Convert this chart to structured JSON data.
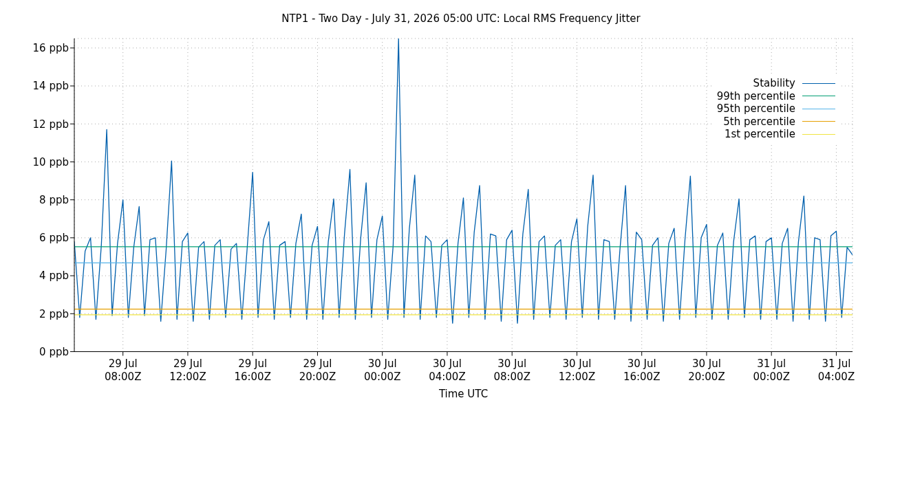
{
  "chart_data": {
    "type": "line",
    "title": "NTP1 - Two Day - July 31, 2026 05:00 UTC: Local RMS Frequency Jitter",
    "xlabel": "Time UTC",
    "xlim": [
      "2026-07-29T05:00",
      "2026-07-31T05:00"
    ],
    "xticks": [
      {
        "value": "2026-07-29T08:00",
        "label": "29 Jul\n08:00Z"
      },
      {
        "value": "2026-07-29T12:00",
        "label": "29 Jul\n12:00Z"
      },
      {
        "value": "2026-07-29T16:00",
        "label": "29 Jul\n16:00Z"
      },
      {
        "value": "2026-07-29T20:00",
        "label": "29 Jul\n20:00Z"
      },
      {
        "value": "2026-07-30T00:00",
        "label": "30 Jul\n00:00Z"
      },
      {
        "value": "2026-07-30T04:00",
        "label": "30 Jul\n04:00Z"
      },
      {
        "value": "2026-07-30T08:00",
        "label": "30 Jul\n08:00Z"
      },
      {
        "value": "2026-07-30T12:00",
        "label": "30 Jul\n12:00Z"
      },
      {
        "value": "2026-07-30T16:00",
        "label": "30 Jul\n16:00Z"
      },
      {
        "value": "2026-07-30T20:00",
        "label": "30 Jul\n20:00Z"
      },
      {
        "value": "2026-07-31T00:00",
        "label": "31 Jul\n00:00Z"
      },
      {
        "value": "2026-07-31T04:00",
        "label": "31 Jul\n04:00Z"
      }
    ],
    "ylim": [
      0,
      16.5
    ],
    "yticks": [
      {
        "value": 0,
        "label": "0 ppb"
      },
      {
        "value": 2,
        "label": "2 ppb"
      },
      {
        "value": 4,
        "label": "4 ppb"
      },
      {
        "value": 6,
        "label": "6 ppb"
      },
      {
        "value": 8,
        "label": "8 ppb"
      },
      {
        "value": 10,
        "label": "10 ppb"
      },
      {
        "value": 12,
        "label": "12 ppb"
      },
      {
        "value": 14,
        "label": "14 ppb"
      },
      {
        "value": 16,
        "label": "16 ppb"
      }
    ],
    "grid": true,
    "legend": "top right",
    "line_style": "solid",
    "marker": "none",
    "series": [
      {
        "name": "Stability",
        "color": "#0060ad",
        "x": [
          "2026-07-29T05:00",
          "2026-07-29T05:20",
          "2026-07-29T05:40",
          "2026-07-29T06:00",
          "2026-07-29T06:20",
          "2026-07-29T06:40",
          "2026-07-29T07:00",
          "2026-07-29T07:20",
          "2026-07-29T07:40",
          "2026-07-29T08:00",
          "2026-07-29T08:20",
          "2026-07-29T08:40",
          "2026-07-29T09:00",
          "2026-07-29T09:20",
          "2026-07-29T09:40",
          "2026-07-29T10:00",
          "2026-07-29T10:20",
          "2026-07-29T10:40",
          "2026-07-29T11:00",
          "2026-07-29T11:20",
          "2026-07-29T11:40",
          "2026-07-29T12:00",
          "2026-07-29T12:20",
          "2026-07-29T12:40",
          "2026-07-29T13:00",
          "2026-07-29T13:20",
          "2026-07-29T13:40",
          "2026-07-29T14:00",
          "2026-07-29T14:20",
          "2026-07-29T14:40",
          "2026-07-29T15:00",
          "2026-07-29T15:20",
          "2026-07-29T15:40",
          "2026-07-29T16:00",
          "2026-07-29T16:20",
          "2026-07-29T16:40",
          "2026-07-29T17:00",
          "2026-07-29T17:20",
          "2026-07-29T17:40",
          "2026-07-29T18:00",
          "2026-07-29T18:20",
          "2026-07-29T18:40",
          "2026-07-29T19:00",
          "2026-07-29T19:20",
          "2026-07-29T19:40",
          "2026-07-29T20:00",
          "2026-07-29T20:20",
          "2026-07-29T20:40",
          "2026-07-29T21:00",
          "2026-07-29T21:20",
          "2026-07-29T21:40",
          "2026-07-29T22:00",
          "2026-07-29T22:20",
          "2026-07-29T22:40",
          "2026-07-29T23:00",
          "2026-07-29T23:20",
          "2026-07-29T23:40",
          "2026-07-30T00:00",
          "2026-07-30T00:20",
          "2026-07-30T00:40",
          "2026-07-30T01:00",
          "2026-07-30T01:20",
          "2026-07-30T01:40",
          "2026-07-30T02:00",
          "2026-07-30T02:20",
          "2026-07-30T02:40",
          "2026-07-30T03:00",
          "2026-07-30T03:20",
          "2026-07-30T03:40",
          "2026-07-30T04:00",
          "2026-07-30T04:20",
          "2026-07-30T04:40",
          "2026-07-30T05:00",
          "2026-07-30T05:20",
          "2026-07-30T05:40",
          "2026-07-30T06:00",
          "2026-07-30T06:20",
          "2026-07-30T06:40",
          "2026-07-30T07:00",
          "2026-07-30T07:20",
          "2026-07-30T07:40",
          "2026-07-30T08:00",
          "2026-07-30T08:20",
          "2026-07-30T08:40",
          "2026-07-30T09:00",
          "2026-07-30T09:20",
          "2026-07-30T09:40",
          "2026-07-30T10:00",
          "2026-07-30T10:20",
          "2026-07-30T10:40",
          "2026-07-30T11:00",
          "2026-07-30T11:20",
          "2026-07-30T11:40",
          "2026-07-30T12:00",
          "2026-07-30T12:20",
          "2026-07-30T12:40",
          "2026-07-30T13:00",
          "2026-07-30T13:20",
          "2026-07-30T13:40",
          "2026-07-30T14:00",
          "2026-07-30T14:20",
          "2026-07-30T14:40",
          "2026-07-30T15:00",
          "2026-07-30T15:20",
          "2026-07-30T15:40",
          "2026-07-30T16:00",
          "2026-07-30T16:20",
          "2026-07-30T16:40",
          "2026-07-30T17:00",
          "2026-07-30T17:20",
          "2026-07-30T17:40",
          "2026-07-30T18:00",
          "2026-07-30T18:20",
          "2026-07-30T18:40",
          "2026-07-30T19:00",
          "2026-07-30T19:20",
          "2026-07-30T19:40",
          "2026-07-30T20:00",
          "2026-07-30T20:20",
          "2026-07-30T20:40",
          "2026-07-30T21:00",
          "2026-07-30T21:20",
          "2026-07-30T21:40",
          "2026-07-30T22:00",
          "2026-07-30T22:20",
          "2026-07-30T22:40",
          "2026-07-30T23:00",
          "2026-07-30T23:20",
          "2026-07-30T23:40",
          "2026-07-31T00:00",
          "2026-07-31T00:20",
          "2026-07-31T00:40",
          "2026-07-31T01:00",
          "2026-07-31T01:20",
          "2026-07-31T01:40",
          "2026-07-31T02:00",
          "2026-07-31T02:20",
          "2026-07-31T02:40",
          "2026-07-31T03:00",
          "2026-07-31T03:20",
          "2026-07-31T03:40",
          "2026-07-31T04:00",
          "2026-07-31T04:20",
          "2026-07-31T04:40",
          "2026-07-31T05:00"
        ],
        "values": [
          5.8,
          1.8,
          5.3,
          6.0,
          1.7,
          5.6,
          11.7,
          1.9,
          5.7,
          8.0,
          1.8,
          5.5,
          7.65,
          1.9,
          5.9,
          6.0,
          1.6,
          5.4,
          10.05,
          1.7,
          5.8,
          6.25,
          1.6,
          5.5,
          5.8,
          1.7,
          5.6,
          5.9,
          1.8,
          5.4,
          5.7,
          1.7,
          5.5,
          9.45,
          1.8,
          5.9,
          6.85,
          1.7,
          5.6,
          5.8,
          1.8,
          5.7,
          7.25,
          1.7,
          5.6,
          6.6,
          1.7,
          5.8,
          8.05,
          1.8,
          6.2,
          9.6,
          1.7,
          6.0,
          8.9,
          1.8,
          5.9,
          7.15,
          1.7,
          5.6,
          16.5,
          1.8,
          6.5,
          9.3,
          1.7,
          6.1,
          5.8,
          1.8,
          5.6,
          5.9,
          1.5,
          5.7,
          8.1,
          1.8,
          6.3,
          8.75,
          1.7,
          6.2,
          6.1,
          1.6,
          5.9,
          6.4,
          1.5,
          6.2,
          8.55,
          1.7,
          5.8,
          6.1,
          1.8,
          5.6,
          5.9,
          1.7,
          5.8,
          7.0,
          1.8,
          6.6,
          9.3,
          1.7,
          5.9,
          5.8,
          1.7,
          5.5,
          8.75,
          1.6,
          6.3,
          5.9,
          1.7,
          5.6,
          6.0,
          1.6,
          5.7,
          6.5,
          1.7,
          5.9,
          9.25,
          1.8,
          6.0,
          6.7,
          1.7,
          5.6,
          6.25,
          1.7,
          5.8,
          8.05,
          1.8,
          5.9,
          6.1,
          1.7,
          5.8,
          6.0,
          1.7,
          5.7,
          6.5,
          1.6,
          5.8,
          8.2,
          1.7,
          6.0,
          5.9,
          1.6,
          6.1,
          6.35,
          1.8,
          5.5,
          5.1
        ]
      },
      {
        "name": "99th percentile",
        "color": "#009e73",
        "x": [
          "2026-07-29T05:00",
          "2026-07-31T05:00"
        ],
        "values": [
          5.53,
          5.53
        ]
      },
      {
        "name": "95th percentile",
        "color": "#56b4e9",
        "x": [
          "2026-07-29T05:00",
          "2026-07-31T05:00"
        ],
        "values": [
          4.68,
          4.68
        ]
      },
      {
        "name": "5th percentile",
        "color": "#e69f00",
        "x": [
          "2026-07-29T05:00",
          "2026-07-31T05:00"
        ],
        "values": [
          2.24,
          2.24
        ]
      },
      {
        "name": "1st percentile",
        "color": "#f0e442",
        "x": [
          "2026-07-29T05:00",
          "2026-07-31T05:00"
        ],
        "values": [
          1.94,
          1.94
        ]
      }
    ]
  }
}
